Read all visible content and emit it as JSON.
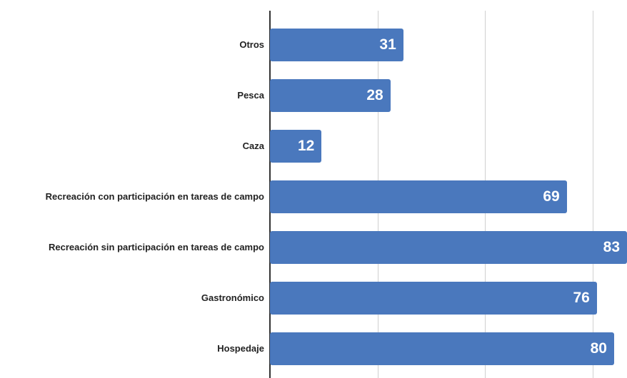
{
  "chart_data": {
    "type": "barh",
    "categories": [
      "Otros",
      "Pesca",
      "Caza",
      "Recreación con participación en tareas de campo",
      "Recreación sin participación en tareas de campo",
      "Gastronómico",
      "Hospedaje"
    ],
    "values": [
      31,
      28,
      12,
      69,
      83,
      76,
      80
    ],
    "color": "#4a78bd",
    "xlim": [
      0,
      83
    ],
    "xticks": [
      0,
      25,
      50,
      75
    ],
    "grid": true
  }
}
